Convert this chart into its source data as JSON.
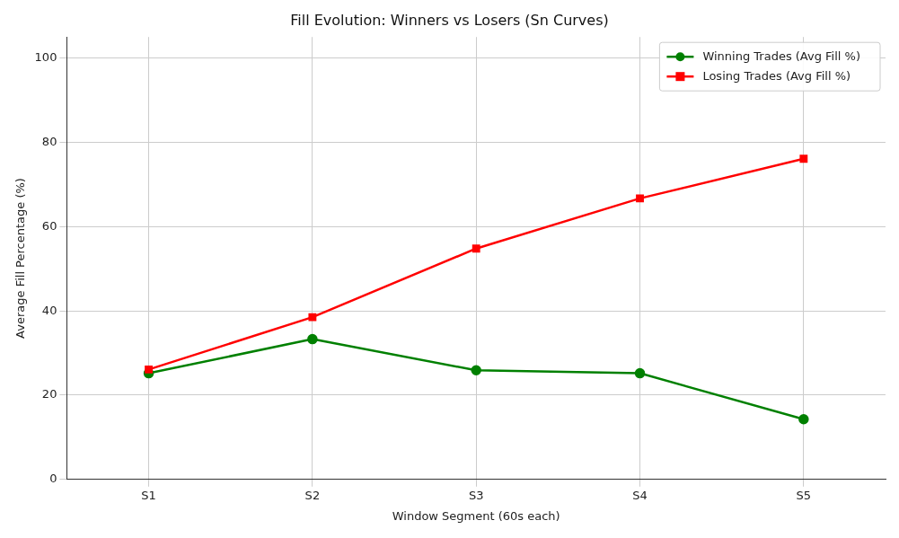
{
  "chart_data": {
    "type": "line",
    "title": "Fill Evolution: Winners vs Losers (Sn Curves)",
    "xlabel": "Window Segment (60s each)",
    "ylabel": "Average Fill Percentage (%)",
    "categories": [
      "S1",
      "S2",
      "S3",
      "S4",
      "S5"
    ],
    "series": [
      {
        "name": "Winning Trades (Avg Fill %)",
        "color": "#008000",
        "marker": "circle",
        "values": [
          25.2,
          33.3,
          25.9,
          25.2,
          14.3
        ]
      },
      {
        "name": "Losing Trades (Avg Fill %)",
        "color": "#ff0000",
        "marker": "square",
        "values": [
          26.1,
          38.5,
          54.8,
          66.7,
          76.1
        ]
      }
    ],
    "ylim": [
      0,
      105
    ],
    "yticks": [
      0,
      20,
      40,
      60,
      80,
      100
    ],
    "grid": true,
    "legend": "top right",
    "line_style": "solid"
  }
}
